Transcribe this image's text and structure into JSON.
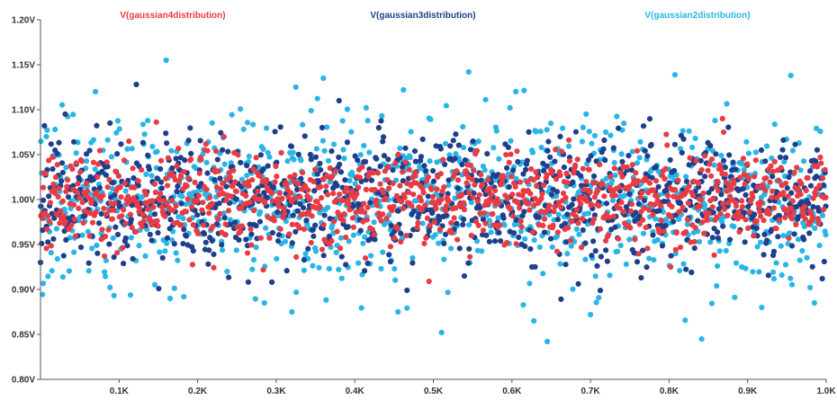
{
  "chart_data": {
    "type": "scatter",
    "title": "",
    "xlabel": "",
    "ylabel": "",
    "xlim": [
      0,
      1000
    ],
    "ylim": [
      0.8,
      1.2
    ],
    "grid": false,
    "legend_placement": "top",
    "x_ticks": [
      {
        "value": 100,
        "label": "0.1K"
      },
      {
        "value": 200,
        "label": "0.2K"
      },
      {
        "value": 300,
        "label": "0.3K"
      },
      {
        "value": 400,
        "label": "0.4K"
      },
      {
        "value": 500,
        "label": "0.5K"
      },
      {
        "value": 600,
        "label": "0.6K"
      },
      {
        "value": 700,
        "label": "0.7K"
      },
      {
        "value": 800,
        "label": "0.8K"
      },
      {
        "value": 900,
        "label": "0.9K"
      },
      {
        "value": 1000,
        "label": "1.0K"
      }
    ],
    "y_ticks": [
      {
        "value": 0.8,
        "label": "0.80V"
      },
      {
        "value": 0.85,
        "label": "0.85V"
      },
      {
        "value": 0.9,
        "label": "0.90V"
      },
      {
        "value": 0.95,
        "label": "0.95V"
      },
      {
        "value": 1.0,
        "label": "1.00V"
      },
      {
        "value": 1.05,
        "label": "1.05V"
      },
      {
        "value": 1.1,
        "label": "1.10V"
      },
      {
        "value": 1.15,
        "label": "1.15V"
      },
      {
        "value": 1.2,
        "label": "1.20V"
      }
    ],
    "series": [
      {
        "name": "V(gaussian2distribution)",
        "color": "#29b6e6",
        "marker": "filled-circle",
        "mean": 1.0,
        "std": 0.045,
        "samples": 1000,
        "highlight_points": [
          {
            "x": 160,
            "y": 1.155
          },
          {
            "x": 545,
            "y": 1.142
          },
          {
            "x": 955,
            "y": 1.138
          },
          {
            "x": 360,
            "y": 1.135
          },
          {
            "x": 70,
            "y": 1.12
          },
          {
            "x": 462,
            "y": 1.122
          },
          {
            "x": 605,
            "y": 1.12
          },
          {
            "x": 325,
            "y": 1.125
          },
          {
            "x": 645,
            "y": 0.842
          },
          {
            "x": 628,
            "y": 0.865
          },
          {
            "x": 165,
            "y": 0.89
          },
          {
            "x": 285,
            "y": 0.885
          },
          {
            "x": 320,
            "y": 0.875
          },
          {
            "x": 455,
            "y": 0.875
          },
          {
            "x": 700,
            "y": 0.872
          },
          {
            "x": 918,
            "y": 0.88
          },
          {
            "x": 985,
            "y": 0.885
          }
        ]
      },
      {
        "name": "V(gaussian3distribution)",
        "color": "#1f3f8c",
        "marker": "filled-circle",
        "mean": 1.0,
        "std": 0.035,
        "samples": 1000,
        "highlight_points": [
          {
            "x": 122,
            "y": 1.128
          },
          {
            "x": 380,
            "y": 1.11
          },
          {
            "x": 5,
            "y": 1.082
          },
          {
            "x": 995,
            "y": 0.912
          },
          {
            "x": 0,
            "y": 0.93
          }
        ]
      },
      {
        "name": "V(gaussian4distribution)",
        "color": "#e83c44",
        "marker": "filled-circle",
        "mean": 1.0,
        "std": 0.025,
        "samples": 1000,
        "highlight_points": [
          {
            "x": 868,
            "y": 1.09
          },
          {
            "x": 802,
            "y": 0.925
          }
        ]
      }
    ],
    "legend_order": [
      "V(gaussian4distribution)",
      "V(gaussian3distribution)",
      "V(gaussian2distribution)"
    ]
  }
}
